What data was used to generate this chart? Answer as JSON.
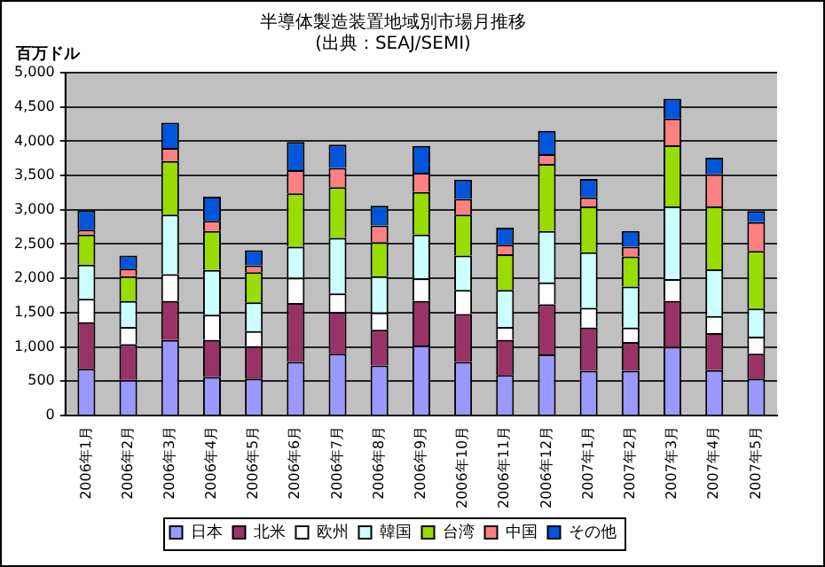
{
  "chart_data": {
    "type": "bar",
    "title": "半導体製造装置地域別市場月推移",
    "subtitle": "(出典：SEAJ/SEMI)",
    "ylabel": "百万ドル",
    "categories": [
      "2006年1月",
      "2006年2月",
      "2006年3月",
      "2006年4月",
      "2006年5月",
      "2006年6月",
      "2006年7月",
      "2006年8月",
      "2006年9月",
      "2006年10月",
      "2006年11月",
      "2006年12月",
      "2007年1月",
      "2007年2月",
      "2007年3月",
      "2007年4月",
      "2007年5月"
    ],
    "stacked": true,
    "ylim": [
      0,
      5000
    ],
    "yticks": [
      0,
      500,
      {
        "value": 1000,
        "label": "1,000"
      },
      {
        "value": 1500,
        "label": "1,500"
      },
      {
        "value": 2000,
        "label": "2,000"
      },
      {
        "value": 2500,
        "label": "2,500"
      },
      {
        "value": 3000,
        "label": "3,000"
      },
      {
        "value": 3500,
        "label": "3,500"
      },
      {
        "value": 4000,
        "label": "4,000"
      },
      {
        "value": 4500,
        "label": "4,500"
      },
      {
        "value": 5000,
        "label": "5,000"
      }
    ],
    "grid": "y",
    "legend": "bottom",
    "series": [
      {
        "name": "日本",
        "color": "#9999ff",
        "values": [
          680,
          520,
          1100,
          560,
          540,
          780,
          900,
          730,
          1020,
          780,
          590,
          890,
          650,
          650,
          1000,
          660,
          540
        ]
      },
      {
        "name": "北米",
        "color": "#993366",
        "values": [
          680,
          520,
          570,
          540,
          470,
          860,
          610,
          520,
          650,
          700,
          510,
          730,
          630,
          420,
          670,
          540,
          360
        ]
      },
      {
        "name": "欧州",
        "color": "#ffffff",
        "values": [
          340,
          250,
          390,
          370,
          220,
          370,
          270,
          250,
          330,
          350,
          190,
          320,
          290,
          210,
          320,
          250,
          250
        ]
      },
      {
        "name": "韓国",
        "color": "#ccffff",
        "values": [
          500,
          380,
          870,
          650,
          420,
          450,
          810,
          530,
          640,
          500,
          540,
          750,
          810,
          600,
          1060,
          680,
          410
        ]
      },
      {
        "name": "台湾",
        "color": "#99dd00",
        "values": [
          440,
          360,
          780,
          570,
          440,
          780,
          740,
          500,
          620,
          600,
          520,
          980,
          670,
          440,
          890,
          920,
          840
        ]
      },
      {
        "name": "中国",
        "color": "#ff8080",
        "values": [
          70,
          110,
          190,
          150,
          100,
          340,
          280,
          240,
          280,
          230,
          140,
          140,
          130,
          140,
          390,
          470,
          420
        ]
      },
      {
        "name": "その他",
        "color": "#0055dd",
        "values": [
          280,
          190,
          370,
          350,
          220,
          410,
          340,
          290,
          390,
          280,
          250,
          340,
          270,
          230,
          290,
          240,
          160
        ]
      }
    ]
  }
}
